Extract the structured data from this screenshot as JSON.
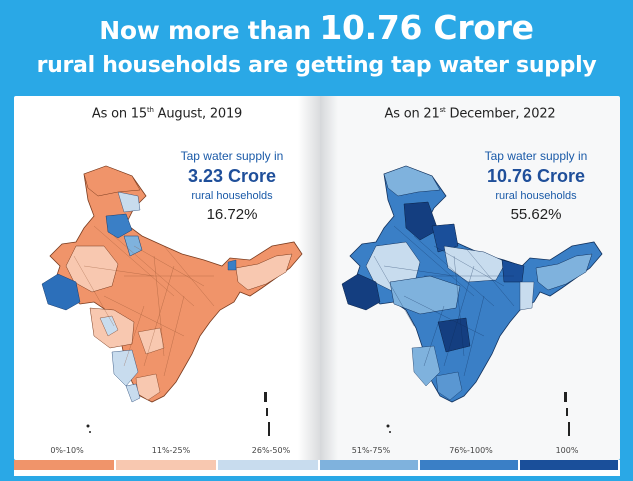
{
  "headline": {
    "line1_prefix": "Now more than",
    "line1_highlight": "10.76 Crore",
    "line2": "rural households are getting tap water supply"
  },
  "panels": [
    {
      "date_prefix": "As on 15",
      "date_suffix": "th",
      "date_rest": " August, 2019",
      "stat_line1": "Tap water supply in",
      "stat_value": "3.23 Crore",
      "stat_line3": "rural households",
      "stat_percent": "16.72%"
    },
    {
      "date_prefix": "As on 21",
      "date_suffix": "st",
      "date_rest": " December, 2022",
      "stat_line1": "Tap water supply in",
      "stat_value": "10.76 Crore",
      "stat_line3": "rural households",
      "stat_percent": "55.62%"
    }
  ],
  "legend": [
    {
      "label": "0%-10%",
      "color": "#f0946a"
    },
    {
      "label": "11%-25%",
      "color": "#f8c8b0"
    },
    {
      "label": "26%-50%",
      "color": "#c8dcee"
    },
    {
      "label": "51%-75%",
      "color": "#7fb2dd"
    },
    {
      "label": "76%-100%",
      "color": "#3a7fc6"
    },
    {
      "label": "100%",
      "color": "#1a4f9a"
    }
  ]
}
